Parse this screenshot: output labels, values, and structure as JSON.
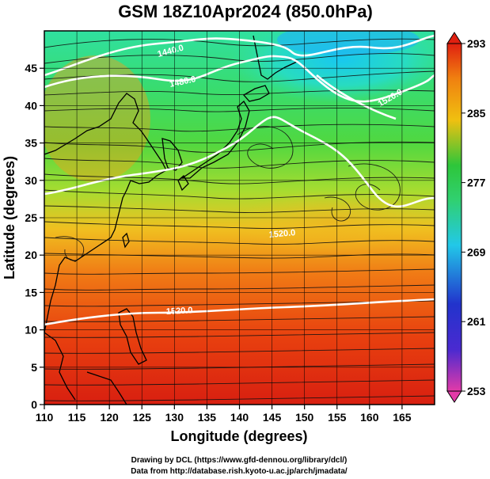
{
  "title": "GSM 18Z10Apr2024 (850.0hPa)",
  "xlabel": "Longitude (degrees)",
  "ylabel": "Latitude  (degrees)",
  "x_ticks": [
    "110",
    "115",
    "120",
    "125",
    "130",
    "135",
    "140",
    "145",
    "150",
    "155",
    "160",
    "165"
  ],
  "y_ticks": [
    "0",
    "5",
    "10",
    "15",
    "20",
    "25",
    "30",
    "35",
    "40",
    "45"
  ],
  "colorbar_ticks": [
    "293",
    "285",
    "277",
    "269",
    "261",
    "253"
  ],
  "contour_labels": [
    "1440.0",
    "1480.0",
    "1520.0",
    "1520.0",
    "1520.0"
  ],
  "credits": {
    "line1": "Drawing by DCL (https://www.gfd-dennou.org/library/dcl/)",
    "line2": "Data from http://database.rish.kyoto-u.ac.jp/arch/jmadata/"
  },
  "map": {
    "lon_range": [
      110,
      170
    ],
    "lat_range": [
      0,
      50
    ],
    "temperature_range": [
      253,
      293
    ],
    "gridlines": true,
    "colormap": [
      "#e23aa8",
      "#2233cc",
      "#22c8e8",
      "#2ec63a",
      "#f0c010",
      "#f08010",
      "#e02010"
    ]
  }
}
